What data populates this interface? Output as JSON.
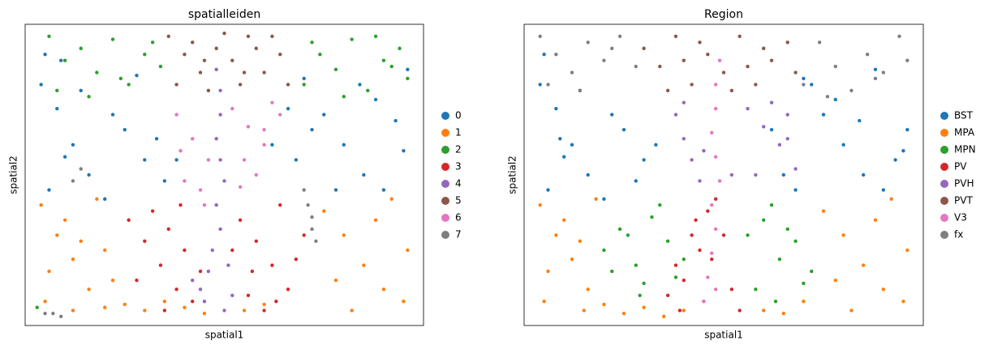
{
  "chart_data": [
    {
      "type": "scatter",
      "title": "spatialleiden",
      "xlabel": "spatial1",
      "ylabel": "spatial2",
      "xlim": [
        0,
        100
      ],
      "ylim": [
        0,
        100
      ],
      "series": [
        {
          "name": "0",
          "color": "#1f77b4",
          "x": [
            4,
            8,
            12,
            16,
            20,
            25,
            30,
            35,
            6,
            14,
            22,
            33,
            10,
            28,
            70,
            75,
            80,
            85,
            90,
            95,
            68,
            78,
            88,
            96,
            72,
            84,
            93,
            5,
            9,
            38,
            62,
            66
          ],
          "y": [
            80,
            72,
            60,
            50,
            42,
            65,
            55,
            48,
            45,
            78,
            70,
            62,
            56,
            83,
            82,
            70,
            60,
            50,
            45,
            58,
            55,
            45,
            75,
            85,
            65,
            80,
            68,
            90,
            88,
            55,
            60,
            72
          ]
        },
        {
          "name": "1",
          "color": "#ff7f0e",
          "x": [
            4,
            8,
            12,
            16,
            20,
            6,
            10,
            14,
            18,
            22,
            5,
            12,
            20,
            25,
            30,
            35,
            40,
            45,
            55,
            60,
            75,
            80,
            85,
            90,
            95,
            78,
            88,
            96,
            82,
            92
          ],
          "y": [
            40,
            30,
            22,
            12,
            6,
            18,
            35,
            28,
            42,
            15,
            8,
            5,
            25,
            7,
            5,
            8,
            6,
            4,
            5,
            7,
            38,
            30,
            20,
            12,
            8,
            15,
            35,
            25,
            5,
            42
          ]
        },
        {
          "name": "2",
          "color": "#2ca02c",
          "x": [
            6,
            10,
            14,
            18,
            22,
            26,
            30,
            34,
            8,
            16,
            24,
            32,
            70,
            74,
            78,
            82,
            86,
            90,
            94,
            96,
            72,
            80,
            88,
            92,
            3
          ],
          "y": [
            96,
            88,
            92,
            84,
            95,
            80,
            90,
            86,
            78,
            76,
            82,
            94,
            80,
            90,
            85,
            95,
            78,
            88,
            92,
            82,
            94,
            76,
            96,
            86,
            6
          ]
        },
        {
          "name": "3",
          "color": "#d62728",
          "x": [
            26,
            30,
            34,
            38,
            42,
            28,
            32,
            36,
            40,
            44,
            35,
            39,
            54,
            58,
            62,
            66,
            70,
            56,
            60,
            64,
            68,
            57,
            63,
            52
          ],
          "y": [
            35,
            28,
            20,
            12,
            8,
            15,
            38,
            32,
            25,
            18,
            5,
            40,
            35,
            28,
            20,
            12,
            30,
            10,
            5,
            40,
            22,
            18,
            8,
            25
          ]
        },
        {
          "name": "4",
          "color": "#9467bd",
          "x": [
            49,
            49,
            48,
            49,
            50,
            48,
            49,
            47,
            46,
            44,
            42,
            45,
            51,
            52,
            48,
            50
          ],
          "y": [
            78,
            70,
            62,
            55,
            48,
            40,
            32,
            25,
            18,
            12,
            15,
            8,
            20,
            10,
            85,
            5
          ]
        },
        {
          "name": "5",
          "color": "#8c564b",
          "x": [
            36,
            40,
            44,
            48,
            52,
            56,
            60,
            64,
            66,
            38,
            42,
            46,
            54,
            58,
            62,
            50,
            45,
            55
          ],
          "y": [
            96,
            90,
            84,
            92,
            88,
            96,
            84,
            90,
            80,
            80,
            94,
            78,
            80,
            92,
            96,
            97,
            88,
            84
          ]
        },
        {
          "name": "6",
          "color": "#e377c2",
          "x": [
            38,
            42,
            46,
            40,
            44,
            52,
            56,
            60,
            64,
            58,
            54,
            62,
            39,
            45,
            55,
            60
          ],
          "y": [
            70,
            62,
            55,
            48,
            45,
            72,
            66,
            60,
            70,
            50,
            46,
            74,
            58,
            40,
            55,
            65
          ]
        },
        {
          "name": "7",
          "color": "#7f7f7f",
          "x": [
            70,
            71,
            72,
            72,
            73,
            5,
            7,
            9,
            12,
            14
          ],
          "y": [
            45,
            40,
            36,
            32,
            28,
            4,
            4,
            3,
            48,
            52
          ]
        }
      ]
    },
    {
      "type": "scatter",
      "title": "Region",
      "xlabel": "spatial1",
      "ylabel": "spatial2",
      "xlim": [
        0,
        100
      ],
      "ylim": [
        0,
        100
      ],
      "series": [
        {
          "name": "BST",
          "color": "#1f77b4",
          "x": [
            4,
            8,
            12,
            16,
            20,
            25,
            30,
            6,
            14,
            22,
            10,
            28,
            5,
            9,
            65,
            70,
            75,
            80,
            85,
            90,
            95,
            68,
            78,
            88,
            96,
            72,
            84,
            93,
            62,
            33
          ],
          "y": [
            80,
            72,
            60,
            50,
            42,
            65,
            55,
            45,
            78,
            70,
            56,
            48,
            90,
            62,
            50,
            82,
            70,
            60,
            50,
            45,
            58,
            45,
            75,
            85,
            65,
            80,
            68,
            55,
            65,
            60
          ]
        },
        {
          "name": "MPA",
          "color": "#ff7f0e",
          "x": [
            4,
            8,
            12,
            16,
            6,
            10,
            14,
            18,
            5,
            15,
            20,
            25,
            30,
            35,
            40,
            60,
            65,
            75,
            80,
            85,
            90,
            95,
            78,
            88,
            96,
            82,
            92,
            70
          ],
          "y": [
            40,
            30,
            22,
            12,
            18,
            35,
            28,
            42,
            8,
            5,
            7,
            4,
            6,
            3,
            5,
            5,
            4,
            38,
            30,
            20,
            12,
            8,
            15,
            35,
            25,
            5,
            42,
            8
          ]
        },
        {
          "name": "MPN",
          "color": "#2ca02c",
          "x": [
            20,
            24,
            28,
            32,
            36,
            40,
            22,
            26,
            30,
            34,
            38,
            29,
            56,
            60,
            64,
            68,
            72,
            58,
            62,
            66,
            70,
            63
          ],
          "y": [
            25,
            32,
            20,
            36,
            28,
            22,
            18,
            30,
            14,
            40,
            16,
            10,
            30,
            35,
            22,
            28,
            18,
            12,
            40,
            32,
            14,
            8
          ]
        },
        {
          "name": "PV",
          "color": "#d62728",
          "x": [
            36,
            38,
            40,
            42,
            44,
            46,
            48,
            39,
            43,
            47,
            50,
            52,
            54,
            45
          ],
          "y": [
            10,
            20,
            15,
            30,
            25,
            38,
            42,
            5,
            35,
            22,
            30,
            12,
            5,
            8
          ]
        },
        {
          "name": "PVH",
          "color": "#9467bd",
          "x": [
            38,
            40,
            42,
            44,
            56,
            60,
            64,
            66,
            68,
            58,
            62,
            40,
            45,
            52,
            66
          ],
          "y": [
            70,
            62,
            55,
            48,
            72,
            66,
            60,
            70,
            52,
            50,
            74,
            74,
            58,
            50,
            62
          ]
        },
        {
          "name": "PVT",
          "color": "#8c564b",
          "x": [
            30,
            34,
            38,
            42,
            46,
            50,
            54,
            58,
            62,
            66,
            68,
            36,
            44,
            52,
            60,
            40,
            56
          ],
          "y": [
            92,
            86,
            96,
            80,
            90,
            84,
            96,
            80,
            88,
            94,
            84,
            78,
            94,
            78,
            92,
            88,
            86
          ]
        },
        {
          "name": "V3",
          "color": "#e377c2",
          "x": [
            48,
            48,
            47,
            48,
            49,
            47,
            48,
            47,
            46,
            45,
            49,
            48
          ],
          "y": [
            80,
            72,
            64,
            56,
            48,
            40,
            32,
            24,
            16,
            8,
            88,
            12
          ]
        },
        {
          "name": "fx",
          "color": "#7f7f7f",
          "x": [
            4,
            8,
            12,
            16,
            20,
            24,
            28,
            6,
            14,
            22,
            70,
            74,
            78,
            82,
            86,
            90,
            94,
            96,
            76,
            88
          ],
          "y": [
            96,
            90,
            84,
            94,
            88,
            96,
            86,
            80,
            78,
            92,
            80,
            94,
            86,
            78,
            90,
            84,
            96,
            88,
            76,
            82
          ]
        }
      ]
    }
  ]
}
